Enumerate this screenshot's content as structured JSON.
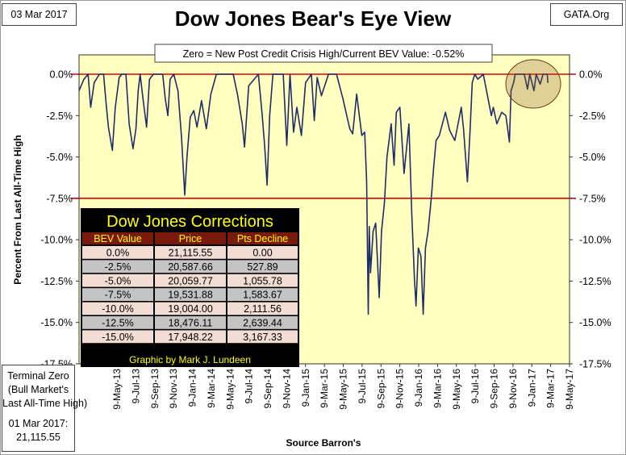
{
  "header": {
    "date": "03 Mar 2017",
    "source_site": "GATA.Org"
  },
  "terminal_zero": {
    "lines": [
      "Terminal Zero",
      "(Bull Market's",
      "Last All-Time High)",
      "",
      "01 Mar 2017:",
      "21,115.55"
    ]
  },
  "corrections_table": {
    "title": "Dow Jones Corrections",
    "headers": [
      "BEV Value",
      "Price",
      "Pts Decline"
    ],
    "rows": [
      [
        "0.0%",
        "21,115.55",
        "0.00"
      ],
      [
        "-2.5%",
        "20,587.66",
        "527.89"
      ],
      [
        "-5.0%",
        "20,059.77",
        "1,055.78"
      ],
      [
        "-7.5%",
        "19,531.88",
        "1,583.67"
      ],
      [
        "-10.0%",
        "19,004.00",
        "2,111.56"
      ],
      [
        "-12.5%",
        "18,476.11",
        "2,639.44"
      ],
      [
        "-15.0%",
        "17,948.22",
        "3,167.33"
      ]
    ],
    "credit": "Graphic by Mark J. Lundeen"
  },
  "colors": {
    "plot_bg": "#ffffc0",
    "line": "#1f2c6b",
    "ref_line": "#e00000",
    "table_bg": "#000000",
    "table_title": "#ffff00",
    "header_bg": "#7a1a0a",
    "row_a": "#f2ddd4",
    "row_b": "#c4c4c4"
  },
  "chart_data": {
    "type": "line",
    "title": "Dow Jones Bear's Eye View",
    "subtitle": "Zero = New Post Credit Crisis High/Current BEV Value:  -0.52%",
    "xlabel": "Source Barron's",
    "ylabel": "Percent From Last All-Time High",
    "ylim": [
      -17.5,
      0
    ],
    "y_ticks": [
      "0.0%",
      "-2.5%",
      "-5.0%",
      "-7.5%",
      "-10.0%",
      "-12.5%",
      "-15.0%",
      "-17.5%"
    ],
    "x_range": [
      "2013-03-13",
      "2017-05-09"
    ],
    "x_ticks": [
      "9-May-13",
      "9-Jul-13",
      "9-Sep-13",
      "9-Nov-13",
      "9-Jan-14",
      "9-Mar-14",
      "9-May-14",
      "9-Jul-14",
      "9-Sep-14",
      "9-Nov-14",
      "9-Jan-15",
      "9-Mar-15",
      "9-May-15",
      "9-Jul-15",
      "9-Sep-15",
      "9-Nov-15",
      "9-Jan-16",
      "9-Mar-16",
      "9-May-16",
      "9-Jul-16",
      "9-Sep-16",
      "9-Nov-16",
      "9-Jan-17",
      "9-Mar-17",
      "9-May-17"
    ],
    "reference_lines": [
      0,
      -7.5
    ],
    "current_value": -0.52,
    "grid": false,
    "series": [
      {
        "points": [
          [
            "2013-03-13",
            -1.0
          ],
          [
            "2013-03-28",
            -0.3
          ],
          [
            "2013-04-10",
            0.0
          ],
          [
            "2013-04-18",
            -2.0
          ],
          [
            "2013-04-29",
            -0.5
          ],
          [
            "2013-05-15",
            0.0
          ],
          [
            "2013-05-28",
            0.0
          ],
          [
            "2013-06-05",
            -1.8
          ],
          [
            "2013-06-12",
            -3.2
          ],
          [
            "2013-06-24",
            -4.6
          ],
          [
            "2013-07-03",
            -2.0
          ],
          [
            "2013-07-15",
            -0.2
          ],
          [
            "2013-07-23",
            0.0
          ],
          [
            "2013-08-05",
            0.0
          ],
          [
            "2013-08-15",
            -3.0
          ],
          [
            "2013-08-27",
            -4.5
          ],
          [
            "2013-09-05",
            -3.3
          ],
          [
            "2013-09-12",
            -1.0
          ],
          [
            "2013-09-18",
            0.0
          ],
          [
            "2013-09-27",
            -1.5
          ],
          [
            "2013-10-08",
            -3.2
          ],
          [
            "2013-10-17",
            -0.3
          ],
          [
            "2013-10-29",
            0.0
          ],
          [
            "2013-11-12",
            0.0
          ],
          [
            "2013-11-27",
            0.0
          ],
          [
            "2013-12-05",
            -1.5
          ],
          [
            "2013-12-13",
            -2.5
          ],
          [
            "2013-12-20",
            -0.3
          ],
          [
            "2013-12-31",
            0.0
          ],
          [
            "2014-01-13",
            -1.0
          ],
          [
            "2014-01-24",
            -3.8
          ],
          [
            "2014-02-03",
            -7.3
          ],
          [
            "2014-02-10",
            -5.0
          ],
          [
            "2014-02-20",
            -2.6
          ],
          [
            "2014-03-03",
            -2.2
          ],
          [
            "2014-03-13",
            -3.2
          ],
          [
            "2014-03-27",
            -1.6
          ],
          [
            "2014-04-11",
            -3.3
          ],
          [
            "2014-04-25",
            -1.2
          ],
          [
            "2014-05-12",
            0.0
          ],
          [
            "2014-05-30",
            0.0
          ],
          [
            "2014-06-20",
            0.0
          ],
          [
            "2014-07-03",
            0.0
          ],
          [
            "2014-07-17",
            -1.3
          ],
          [
            "2014-07-31",
            -3.0
          ],
          [
            "2014-08-07",
            -4.4
          ],
          [
            "2014-08-20",
            -0.7
          ],
          [
            "2014-09-19",
            0.0
          ],
          [
            "2014-10-01",
            -2.5
          ],
          [
            "2014-10-09",
            -4.5
          ],
          [
            "2014-10-16",
            -6.7
          ],
          [
            "2014-10-24",
            -2.5
          ],
          [
            "2014-11-03",
            0.0
          ],
          [
            "2014-11-20",
            0.0
          ],
          [
            "2014-12-05",
            0.0
          ],
          [
            "2014-12-16",
            -4.3
          ],
          [
            "2014-12-26",
            0.0
          ],
          [
            "2015-01-06",
            -3.5
          ],
          [
            "2015-01-16",
            -2.0
          ],
          [
            "2015-01-30",
            -3.7
          ],
          [
            "2015-02-12",
            -0.5
          ],
          [
            "2015-03-02",
            0.0
          ],
          [
            "2015-03-11",
            -2.8
          ],
          [
            "2015-03-20",
            -0.2
          ],
          [
            "2015-04-02",
            -1.3
          ],
          [
            "2015-04-24",
            0.0
          ],
          [
            "2015-05-19",
            0.0
          ],
          [
            "2015-06-08",
            -1.5
          ],
          [
            "2015-06-29",
            -3.3
          ],
          [
            "2015-07-08",
            -3.6
          ],
          [
            "2015-07-20",
            -1.2
          ],
          [
            "2015-08-05",
            -3.7
          ],
          [
            "2015-08-14",
            -3.5
          ],
          [
            "2015-08-20",
            -6.5
          ],
          [
            "2015-08-25",
            -14.5
          ],
          [
            "2015-08-28",
            -9.2
          ],
          [
            "2015-09-01",
            -12.0
          ],
          [
            "2015-09-09",
            -9.5
          ],
          [
            "2015-09-17",
            -9.0
          ],
          [
            "2015-09-28",
            -13.5
          ],
          [
            "2015-10-05",
            -9.5
          ],
          [
            "2015-10-14",
            -7.8
          ],
          [
            "2015-10-22",
            -5.0
          ],
          [
            "2015-11-04",
            -3.0
          ],
          [
            "2015-11-13",
            -5.5
          ],
          [
            "2015-11-20",
            -2.3
          ],
          [
            "2015-12-01",
            -2.0
          ],
          [
            "2015-12-14",
            -6.0
          ],
          [
            "2015-12-29",
            -3.0
          ],
          [
            "2016-01-07",
            -8.5
          ],
          [
            "2016-01-15",
            -12.3
          ],
          [
            "2016-01-20",
            -14.0
          ],
          [
            "2016-01-27",
            -10.5
          ],
          [
            "2016-02-04",
            -11.0
          ],
          [
            "2016-02-11",
            -14.5
          ],
          [
            "2016-02-18",
            -10.5
          ],
          [
            "2016-02-26",
            -9.5
          ],
          [
            "2016-03-07",
            -7.5
          ],
          [
            "2016-03-15",
            -5.5
          ],
          [
            "2016-03-22",
            -4.0
          ],
          [
            "2016-04-01",
            -3.7
          ],
          [
            "2016-04-20",
            -2.3
          ],
          [
            "2016-05-03",
            -3.4
          ],
          [
            "2016-05-19",
            -4.0
          ],
          [
            "2016-06-08",
            -2.0
          ],
          [
            "2016-06-15",
            -3.3
          ],
          [
            "2016-06-27",
            -6.5
          ],
          [
            "2016-07-05",
            -3.5
          ],
          [
            "2016-07-12",
            -0.5
          ],
          [
            "2016-07-20",
            0.0
          ],
          [
            "2016-07-29",
            -0.3
          ],
          [
            "2016-08-15",
            0.0
          ],
          [
            "2016-08-25",
            -1.0
          ],
          [
            "2016-09-09",
            -2.5
          ],
          [
            "2016-09-15",
            -2.0
          ],
          [
            "2016-09-26",
            -3.0
          ],
          [
            "2016-10-11",
            -2.3
          ],
          [
            "2016-10-24",
            -2.5
          ],
          [
            "2016-11-04",
            -4.1
          ],
          [
            "2016-11-09",
            -1.0
          ],
          [
            "2016-11-17",
            -0.5
          ],
          [
            "2016-11-22",
            0.0
          ],
          [
            "2016-12-07",
            0.0
          ],
          [
            "2016-12-20",
            0.0
          ],
          [
            "2016-12-30",
            -0.9
          ],
          [
            "2017-01-06",
            0.0
          ],
          [
            "2017-01-19",
            -1.0
          ],
          [
            "2017-01-26",
            0.0
          ],
          [
            "2017-02-07",
            -0.6
          ],
          [
            "2017-02-16",
            0.0
          ],
          [
            "2017-02-23",
            0.0
          ],
          [
            "2017-03-01",
            0.0
          ],
          [
            "2017-03-03",
            -0.52
          ]
        ]
      }
    ]
  }
}
